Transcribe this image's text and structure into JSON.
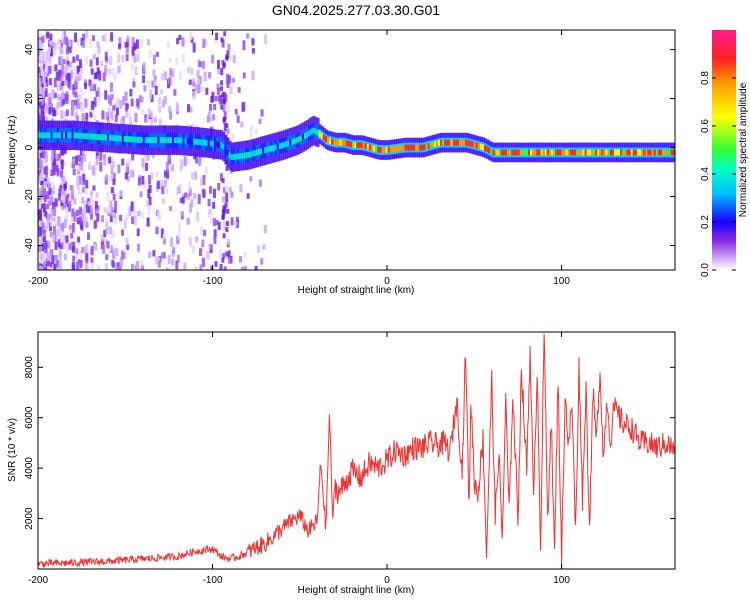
{
  "figure_title": "GN04.2025.277.03.30.G01",
  "chart_data": [
    {
      "type": "heatmap",
      "title": "GN04.2025.277.03.30.G01",
      "xlabel": "Height of straight line (km)",
      "ylabel": "Frequency (Hz)",
      "xlim": [
        -200,
        165
      ],
      "ylim": [
        -50,
        48
      ],
      "xticks": [
        -200,
        -100,
        0,
        100
      ],
      "xtick_labels": [
        "-200",
        "-100",
        "0",
        "100"
      ],
      "yticks": [
        -40,
        -20,
        0,
        20,
        40
      ],
      "ytick_labels": [
        "-40",
        "-20",
        "0",
        "20",
        "40"
      ],
      "grid": false,
      "description_points": {
        "ridge_x": [
          -200,
          -180,
          -160,
          -140,
          -120,
          -105,
          -95,
          -90,
          -80,
          -70,
          -60,
          -52,
          -47,
          -43,
          -40,
          -35,
          -30,
          -25,
          -20,
          -15,
          -10,
          -5,
          0,
          10,
          20,
          25,
          30,
          35,
          40,
          45,
          50,
          55,
          60,
          70,
          80,
          90,
          100,
          110,
          120,
          130,
          140,
          150,
          160,
          165
        ],
        "ridge_y": [
          5,
          5,
          4,
          3,
          3,
          2,
          1,
          -4,
          -3,
          -1,
          1,
          3,
          5,
          7,
          6,
          3,
          2,
          2,
          1,
          1,
          0,
          -1,
          -1,
          0,
          0,
          1,
          2,
          2,
          2,
          2,
          1,
          0,
          -2,
          -2,
          -2,
          -2,
          -2,
          -2,
          -2,
          -2,
          -2,
          -2,
          -2,
          -2
        ]
      },
      "colorbar": {
        "label": "Normalized spectral amplitude",
        "range": [
          0,
          1
        ],
        "ticks": [
          0.0,
          0.2,
          0.4,
          0.6,
          0.8
        ],
        "tick_labels": [
          "0.0",
          "0.2",
          "0.4",
          "0.6",
          "0.8"
        ]
      }
    },
    {
      "type": "line",
      "xlabel": "Height of straight line (km)",
      "ylabel": "SNR (10 * v/v)",
      "xlim": [
        -200,
        165
      ],
      "ylim": [
        0,
        9400
      ],
      "xticks": [
        -200,
        -100,
        0,
        100
      ],
      "xtick_labels": [
        "-200",
        "-100",
        "0",
        "100"
      ],
      "yticks": [
        2000,
        4000,
        6000,
        8000
      ],
      "ytick_labels": [
        "2000",
        "4000",
        "6000",
        "8000"
      ],
      "grid": false,
      "series": [
        {
          "name": "SNR",
          "color": "#ee3333",
          "x": [
            -200,
            -180,
            -160,
            -140,
            -120,
            -110,
            -100,
            -95,
            -90,
            -85,
            -80,
            -75,
            -70,
            -65,
            -60,
            -55,
            -50,
            -45,
            -40,
            -38,
            -35,
            -33,
            -31,
            -30,
            -28,
            -25,
            -20,
            -15,
            -10,
            -5,
            0,
            5,
            10,
            15,
            20,
            25,
            30,
            33,
            36,
            40,
            43,
            45,
            47,
            48,
            50,
            52,
            55,
            57,
            60,
            62,
            64,
            66,
            68,
            70,
            72,
            75,
            77,
            80,
            82,
            84,
            86,
            88,
            90,
            92,
            94,
            96,
            98,
            100,
            102,
            104,
            106,
            108,
            110,
            112,
            114,
            116,
            118,
            120,
            122,
            124,
            126,
            128,
            130,
            135,
            140,
            145,
            150,
            155,
            160,
            165
          ],
          "values": [
            200,
            250,
            300,
            400,
            500,
            700,
            800,
            500,
            400,
            500,
            650,
            850,
            1000,
            1300,
            1600,
            1900,
            2100,
            1500,
            1900,
            4200,
            1600,
            6200,
            1700,
            3400,
            3000,
            3300,
            3900,
            3600,
            4200,
            4000,
            4300,
            4700,
            4500,
            4800,
            4800,
            5000,
            4900,
            5000,
            4600,
            6700,
            3800,
            8700,
            2300,
            6800,
            3500,
            3000,
            5200,
            600,
            7500,
            2000,
            4700,
            1200,
            6600,
            2200,
            7000,
            2000,
            8000,
            3900,
            8800,
            2500,
            8000,
            1000,
            9400,
            2000,
            6000,
            500,
            7700,
            200,
            7000,
            4800,
            6600,
            1400,
            8000,
            2800,
            7200,
            1600,
            7000,
            5000,
            8000,
            4300,
            6800,
            5000,
            6400,
            5800,
            5600,
            5000,
            5000,
            4800,
            5000,
            4700
          ]
        }
      ]
    }
  ]
}
